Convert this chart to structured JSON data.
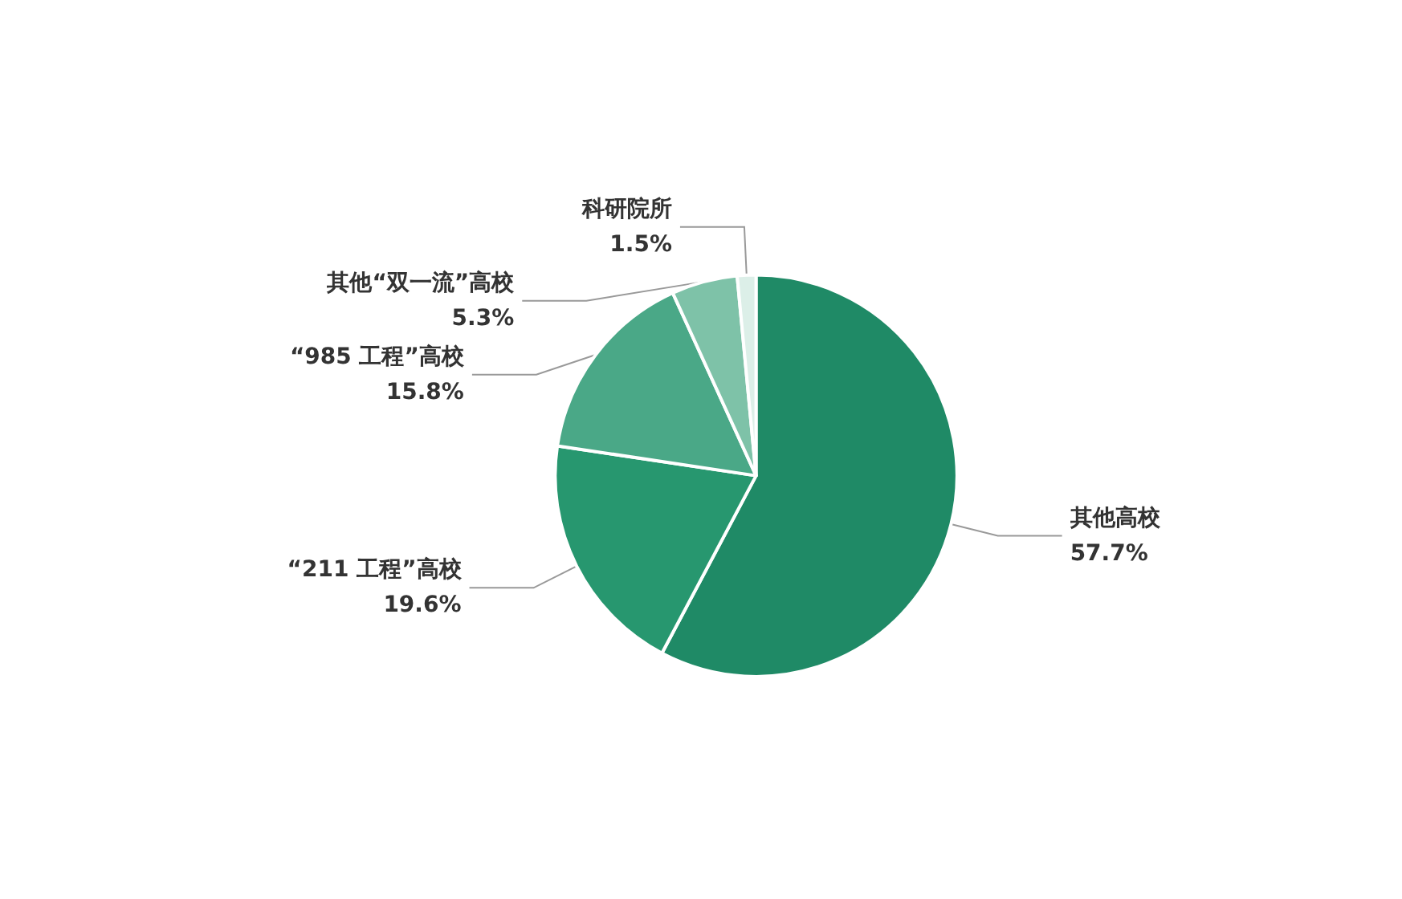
{
  "chart_data": {
    "type": "pie",
    "categories": [
      "其他高校",
      "“211 工程”高校",
      "“985 工程”高校",
      "其他“双一流”高校",
      "科研院所"
    ],
    "values": [
      57.7,
      19.6,
      15.8,
      5.3,
      1.5
    ],
    "colors": [
      "#1f8a66",
      "#27976f",
      "#4aa887",
      "#7ec2a8",
      "#dcefe8"
    ],
    "value_labels": [
      "57.7%",
      "19.6%",
      "15.8%",
      "5.3%",
      "1.5%"
    ]
  }
}
